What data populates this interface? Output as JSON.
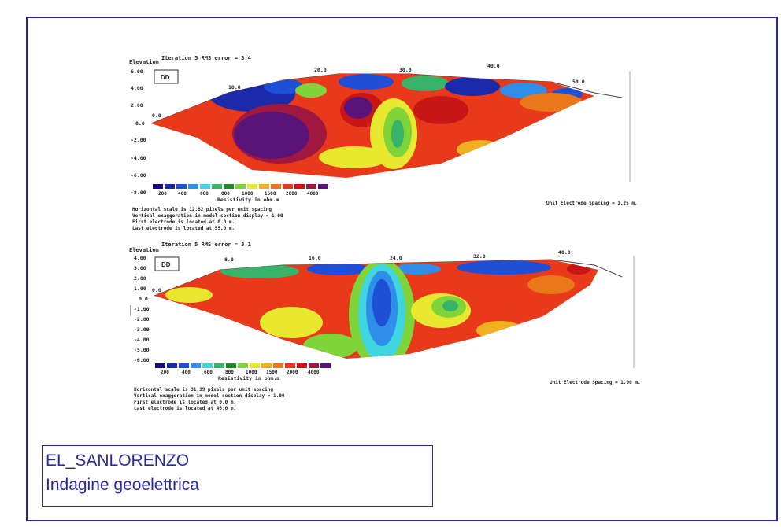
{
  "sections": [
    {
      "iteration": "Iteration 5 RMS error = 3.4",
      "elevation_label": "Elevation",
      "method_label": "DD",
      "y_ticks": [
        "6.00",
        "4.00",
        "2.00",
        "0.0",
        "-2.00",
        "-4.00",
        "-6.00",
        "-8.00"
      ],
      "top_ticks": [
        "0.0",
        "10.0",
        "20.0",
        "30.0",
        "40.0",
        "50.0"
      ],
      "legend_values": [
        "200",
        "400",
        "600",
        "800",
        "1000",
        "1500",
        "2000",
        "4000"
      ],
      "legend_unit": "Resistivity in ohm.m",
      "notes": [
        "Horizontal scale is 12.82 pixels per unit spacing",
        "Vertical exaggeration in model section display = 1.00",
        "First electrode is located at 0.0  m.",
        "Last electrode is located at 55.0 m."
      ],
      "spacing": "Unit Electrode Spacing = 1.25 m."
    },
    {
      "iteration": "Iteration 5 RMS error = 3.1",
      "elevation_label": "Elevation",
      "method_label": "DD",
      "y_ticks": [
        "4.00",
        "3.00",
        "2.00",
        "1.00",
        "0.0",
        "-1.00",
        "-2.00",
        "-3.00",
        "-4.00",
        "-5.00",
        "-6.00"
      ],
      "top_ticks": [
        "0.0",
        "8.0",
        "16.0",
        "24.0",
        "32.0",
        "40.0"
      ],
      "legend_values": [
        "200",
        "400",
        "600",
        "800",
        "1000",
        "1500",
        "2000",
        "4000"
      ],
      "legend_unit": "Resistivity in ohm.m",
      "notes": [
        "Horizontal scale is 31.39 pixels per unit spacing",
        "Vertical exaggeration in model section display = 1.00",
        "First electrode is located at 0.0  m.",
        "Last electrode is located at 46.0 m."
      ],
      "spacing": "Unit Electrode Spacing = 1.00 m."
    }
  ],
  "legend_colors": [
    "#1a0a7a",
    "#1a2aa8",
    "#1f4fd6",
    "#2f8fe8",
    "#3fd6e0",
    "#37b36a",
    "#1f8a2a",
    "#7fd43a",
    "#e8e830",
    "#f0b020",
    "#e87818",
    "#e83a1a",
    "#c81616",
    "#a01840",
    "#5a1478"
  ],
  "caption": {
    "line1": "EL_SANLORENZO",
    "line2": "Indagine geoelettrica"
  }
}
